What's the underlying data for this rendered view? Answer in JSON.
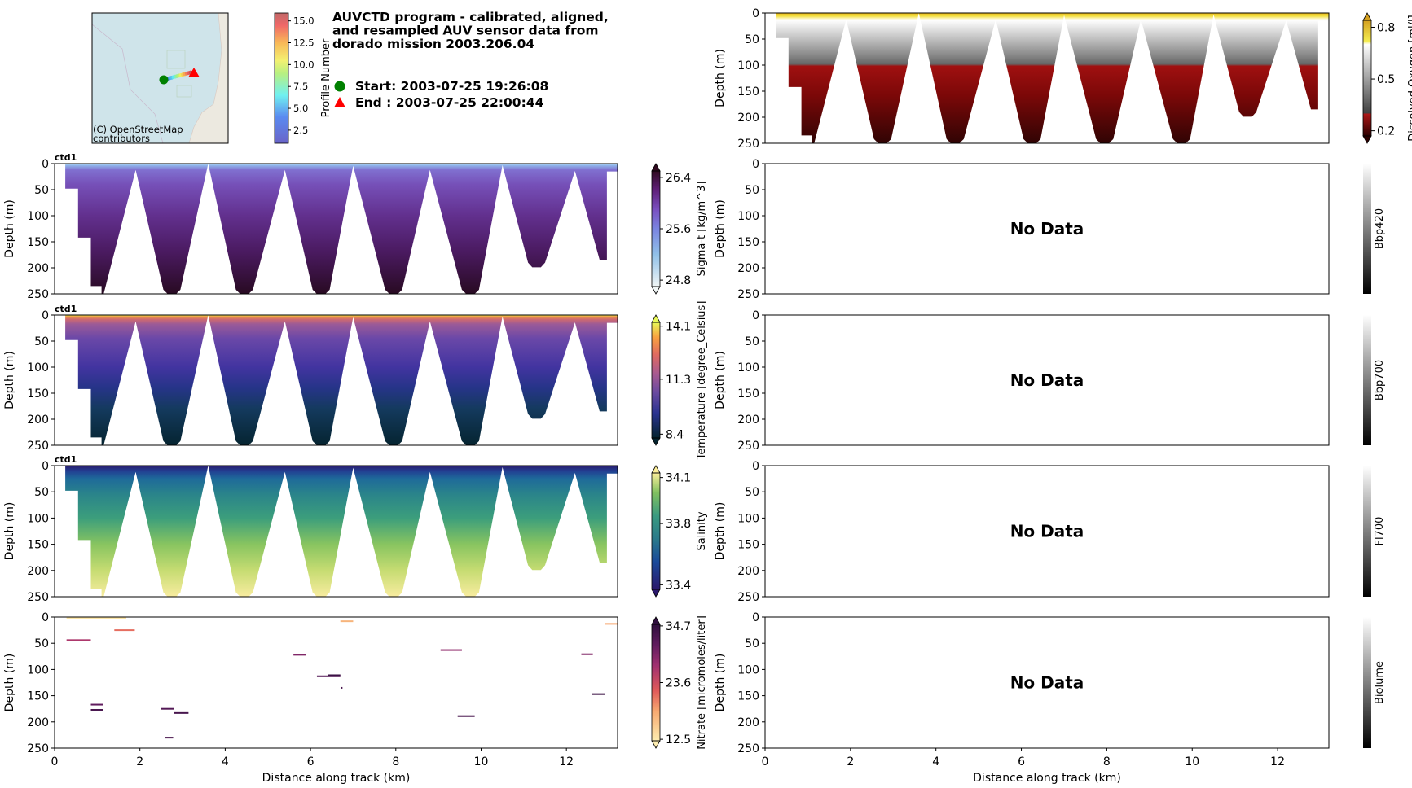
{
  "title": {
    "lines": [
      "AUVCTD program - calibrated, aligned,",
      "and resampled AUV sensor data from",
      "dorado mission 2003.206.04"
    ]
  },
  "legend": {
    "start": "Start: 2003-07-25 19:26:08",
    "end": "End  : 2003-07-25 22:00:44",
    "start_color": "#008000",
    "end_color": "#ff0000"
  },
  "map": {
    "attribution_lines": [
      "(C) OpenStreetMap",
      "contributors"
    ],
    "track_colorbar": {
      "label": "Profile Number",
      "ticks": [
        "2.5",
        "5.0",
        "7.5",
        "10.0",
        "12.5",
        "15.0"
      ],
      "tick_values": [
        2.5,
        5,
        7.5,
        10,
        12.5,
        15
      ],
      "range": [
        1.0,
        15.9
      ]
    }
  },
  "axes_common": {
    "ylabel": "Depth (m)",
    "xlabel": "Distance along track (km)",
    "yticks": [
      "0",
      "50",
      "100",
      "150",
      "200",
      "250"
    ],
    "ytick_values": [
      0,
      50,
      100,
      150,
      200,
      250
    ],
    "xticks": [
      "0",
      "2",
      "4",
      "6",
      "8",
      "10",
      "12"
    ],
    "xtick_values": [
      0,
      2,
      4,
      6,
      8,
      10,
      12
    ],
    "xlim": [
      0,
      13.2
    ],
    "ylim": [
      250,
      0
    ],
    "no_data_text": "No Data",
    "track_outline_km_m": [
      [
        0.25,
        0
      ],
      [
        13.2,
        0
      ],
      [
        13.2,
        15
      ],
      [
        12.95,
        15
      ],
      [
        12.95,
        185
      ],
      [
        12.78,
        185
      ],
      [
        12.2,
        14
      ],
      [
        11.5,
        190
      ],
      [
        11.4,
        199
      ],
      [
        11.2,
        199
      ],
      [
        11.1,
        190
      ],
      [
        10.5,
        3
      ],
      [
        9.95,
        242
      ],
      [
        9.85,
        250
      ],
      [
        9.65,
        250
      ],
      [
        9.55,
        242
      ],
      [
        8.8,
        12
      ],
      [
        8.15,
        242
      ],
      [
        8.05,
        250
      ],
      [
        7.85,
        250
      ],
      [
        7.75,
        242
      ],
      [
        7.0,
        4
      ],
      [
        6.45,
        242
      ],
      [
        6.35,
        250
      ],
      [
        6.15,
        250
      ],
      [
        6.05,
        242
      ],
      [
        5.4,
        12
      ],
      [
        4.65,
        242
      ],
      [
        4.55,
        250
      ],
      [
        4.35,
        250
      ],
      [
        4.25,
        242
      ],
      [
        3.6,
        0
      ],
      [
        2.95,
        242
      ],
      [
        2.85,
        250
      ],
      [
        2.65,
        250
      ],
      [
        2.55,
        242
      ],
      [
        1.9,
        12
      ],
      [
        1.15,
        250
      ],
      [
        1.1,
        250
      ],
      [
        1.1,
        235
      ],
      [
        0.85,
        235
      ],
      [
        0.85,
        142
      ],
      [
        0.55,
        142
      ],
      [
        0.55,
        48
      ],
      [
        0.25,
        48
      ]
    ]
  },
  "chart_data": [
    {
      "id": "oxygen",
      "type": "heatmap",
      "title": "",
      "colorbar_label": "Dissolved Oxygen [ml/l]",
      "colorbar_ticks": [
        "0.2",
        "0.5",
        "0.8"
      ],
      "colorbar_tick_values": [
        0.2,
        0.5,
        0.8
      ],
      "colorbar_range": [
        0.17,
        0.84
      ],
      "extend": true,
      "no_data": false,
      "depth_profile": [
        [
          0,
          "#e8b820"
        ],
        [
          6,
          "#f2e040"
        ],
        [
          13,
          "#ffffff"
        ],
        [
          45,
          "#c8c8c8"
        ],
        [
          80,
          "#8a8a8a"
        ],
        [
          98,
          "#666666"
        ],
        [
          102,
          "#a01010"
        ],
        [
          160,
          "#7a0808"
        ],
        [
          250,
          "#300404"
        ]
      ],
      "cmap": [
        [
          0.17,
          "#2a0000"
        ],
        [
          0.3,
          "#b01818"
        ],
        [
          0.301,
          "#404040"
        ],
        [
          0.7,
          "#ffffff"
        ],
        [
          0.72,
          "#f4ec50"
        ],
        [
          0.84,
          "#d4a020"
        ]
      ]
    },
    {
      "id": "sigma_t",
      "type": "heatmap",
      "title": "ctd1",
      "colorbar_label": "Sigma-t [kg/m^3]",
      "colorbar_ticks": [
        "24.8",
        "25.6",
        "26.4"
      ],
      "colorbar_tick_values": [
        24.8,
        25.6,
        26.4
      ],
      "colorbar_range": [
        24.7,
        26.5
      ],
      "extend": true,
      "no_data": false,
      "depth_profile": [
        [
          0,
          "#c8e4f4"
        ],
        [
          3,
          "#90b8ec"
        ],
        [
          12,
          "#8070d0"
        ],
        [
          40,
          "#7650b8"
        ],
        [
          100,
          "#62308e"
        ],
        [
          170,
          "#4a1a60"
        ],
        [
          250,
          "#280a22"
        ]
      ],
      "cmap": [
        [
          24.7,
          "#f0f6f6"
        ],
        [
          25.2,
          "#90c0e8"
        ],
        [
          25.6,
          "#7a84e0"
        ],
        [
          25.9,
          "#7a50c0"
        ],
        [
          26.2,
          "#60207a"
        ],
        [
          26.5,
          "#300a20"
        ]
      ]
    },
    {
      "id": "temperature",
      "type": "heatmap",
      "title": "ctd1",
      "colorbar_label": "Temperature [degree_Celsius]",
      "colorbar_ticks": [
        "8.4",
        "11.3",
        "14.1"
      ],
      "colorbar_tick_values": [
        8.4,
        11.3,
        14.1
      ],
      "colorbar_range": [
        8.2,
        14.3
      ],
      "extend": true,
      "no_data": false,
      "depth_profile": [
        [
          0,
          "#e8f060"
        ],
        [
          3,
          "#f09a40"
        ],
        [
          8,
          "#d06a70"
        ],
        [
          18,
          "#9a5a98"
        ],
        [
          45,
          "#6a48a8"
        ],
        [
          100,
          "#4234a0"
        ],
        [
          140,
          "#263488"
        ],
        [
          180,
          "#143a5e"
        ],
        [
          250,
          "#052430"
        ]
      ],
      "cmap": [
        [
          8.2,
          "#04232e"
        ],
        [
          9.5,
          "#2a3390"
        ],
        [
          10.6,
          "#6a4aa0"
        ],
        [
          11.6,
          "#a85a90"
        ],
        [
          12.6,
          "#e06a60"
        ],
        [
          13.5,
          "#f8a040"
        ],
        [
          14.3,
          "#e8f858"
        ]
      ]
    },
    {
      "id": "salinity",
      "type": "heatmap",
      "title": "ctd1",
      "colorbar_label": "Salinity",
      "colorbar_ticks": [
        "33.4",
        "33.8",
        "34.1"
      ],
      "colorbar_tick_values": [
        33.4,
        33.8,
        34.1
      ],
      "colorbar_range": [
        33.37,
        34.13
      ],
      "extend": true,
      "no_data": false,
      "depth_profile": [
        [
          0,
          "#2a1a6a"
        ],
        [
          10,
          "#223e92"
        ],
        [
          25,
          "#1e6a9a"
        ],
        [
          55,
          "#2a848a"
        ],
        [
          100,
          "#3c9e7c"
        ],
        [
          150,
          "#88c460"
        ],
        [
          200,
          "#c6dc72"
        ],
        [
          250,
          "#f8eca0"
        ]
      ],
      "cmap": [
        [
          33.37,
          "#2a186c"
        ],
        [
          33.55,
          "#1a4a9a"
        ],
        [
          33.7,
          "#2a7a8a"
        ],
        [
          33.85,
          "#3a9a80"
        ],
        [
          34.0,
          "#80c060"
        ],
        [
          34.13,
          "#fdef9a"
        ]
      ]
    },
    {
      "id": "nitrate",
      "type": "scatter",
      "title": "",
      "colorbar_label": "Nitrate [micromoles/liter]",
      "colorbar_ticks": [
        "12.5",
        "23.6",
        "34.7"
      ],
      "colorbar_tick_values": [
        12.5,
        23.6,
        34.7
      ],
      "colorbar_range": [
        12.2,
        35.0
      ],
      "extend": true,
      "no_data": false,
      "cmap": [
        [
          12.2,
          "#fdedb0"
        ],
        [
          18,
          "#f6a870"
        ],
        [
          22,
          "#e05a5a"
        ],
        [
          27,
          "#a03070"
        ],
        [
          31,
          "#601c5e"
        ],
        [
          35.0,
          "#2f0f3d"
        ]
      ],
      "segments": [
        {
          "x": [
            0.28,
            1.68
          ],
          "depth": 2,
          "value": 12.8
        },
        {
          "x": [
            1.4,
            1.88
          ],
          "depth": 25,
          "value": 21
        },
        {
          "x": [
            0.28,
            0.85
          ],
          "depth": 44,
          "value": 26
        },
        {
          "x": [
            6.7,
            7.0
          ],
          "depth": 8,
          "value": 17
        },
        {
          "x": [
            12.9,
            13.2
          ],
          "depth": 13,
          "value": 18
        },
        {
          "x": [
            5.6,
            5.9
          ],
          "depth": 72,
          "value": 29
        },
        {
          "x": [
            9.05,
            9.55
          ],
          "depth": 63,
          "value": 28
        },
        {
          "x": [
            12.35,
            12.62
          ],
          "depth": 71,
          "value": 29
        },
        {
          "x": [
            6.15,
            6.7
          ],
          "depth": 113,
          "value": 32
        },
        {
          "x": [
            6.4,
            6.7
          ],
          "depth": 111,
          "value": 34
        },
        {
          "x": [
            6.72,
            6.75
          ],
          "depth": 135,
          "value": 33
        },
        {
          "x": [
            12.6,
            12.9
          ],
          "depth": 147,
          "value": 34
        },
        {
          "x": [
            0.85,
            1.14
          ],
          "depth": 167,
          "value": 31
        },
        {
          "x": [
            0.85,
            1.14
          ],
          "depth": 177,
          "value": 33
        },
        {
          "x": [
            2.5,
            2.8
          ],
          "depth": 175,
          "value": 32
        },
        {
          "x": [
            2.8,
            3.14
          ],
          "depth": 183,
          "value": 33
        },
        {
          "x": [
            9.45,
            9.85
          ],
          "depth": 189,
          "value": 33
        },
        {
          "x": [
            2.58,
            2.78
          ],
          "depth": 230,
          "value": 33
        }
      ]
    },
    {
      "id": "bbp420",
      "type": "heatmap",
      "title": "",
      "colorbar_label": "Bbp420",
      "colorbar_ticks": [],
      "extend": false,
      "no_data": true,
      "cmap_gray": true
    },
    {
      "id": "bbp700",
      "type": "heatmap",
      "title": "",
      "colorbar_label": "Bbp700",
      "colorbar_ticks": [],
      "extend": false,
      "no_data": true,
      "cmap_gray": true
    },
    {
      "id": "fl700",
      "type": "heatmap",
      "title": "",
      "colorbar_label": "Fl700",
      "colorbar_ticks": [],
      "extend": false,
      "no_data": true,
      "cmap_gray": true
    },
    {
      "id": "biolume",
      "type": "heatmap",
      "title": "",
      "colorbar_label": "Biolume",
      "colorbar_ticks": [],
      "extend": false,
      "no_data": true,
      "cmap_gray": true
    }
  ]
}
